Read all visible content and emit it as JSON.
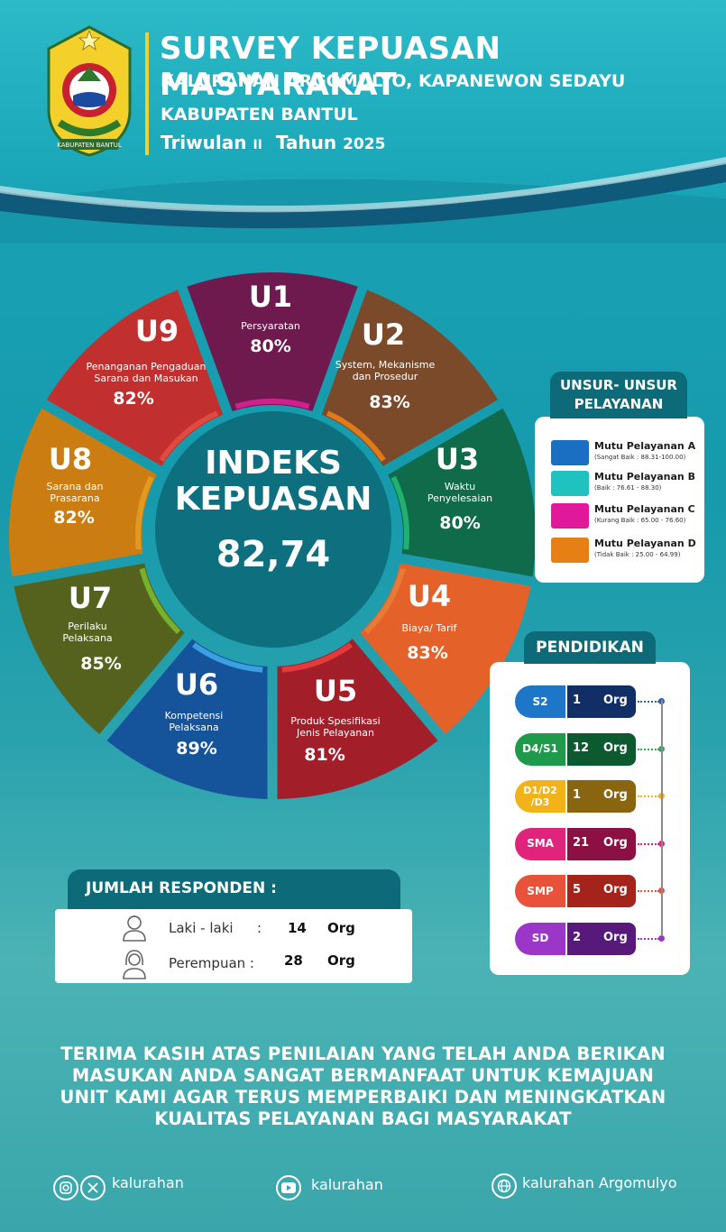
{
  "header": {
    "title": "SURVEY KEPUASAN MASYARAKAT",
    "subtitle": "KALURAHAN ARGOMULYO, KAPANEWON SEDAYU",
    "region": "KABUPATEN BANTUL",
    "quarter_label": "Triwulan",
    "quarter_value": "II",
    "year_label": "Tahun",
    "year_value": "2025",
    "logo_text": "KABUPATEN BANTUL"
  },
  "index": {
    "title_line1": "INDEKS",
    "title_line2": "KEPUASAN",
    "value": "82,74"
  },
  "segments": [
    {
      "code": "U1",
      "name_lines": [
        "Persyaratan"
      ],
      "percent": "80%",
      "color": "#6e1a4f"
    },
    {
      "code": "U2",
      "name_lines": [
        "System, Mekanisme",
        "dan Prosedur"
      ],
      "percent": "83%",
      "color": "#7a4a2a"
    },
    {
      "code": "U3",
      "name_lines": [
        "Waktu",
        "Penyelesaian"
      ],
      "percent": "80%",
      "color": "#0f6b4a"
    },
    {
      "code": "U4",
      "name_lines": [
        "Biaya/ Tarif"
      ],
      "percent": "83%",
      "color": "#e4622a"
    },
    {
      "code": "U5",
      "name_lines": [
        "Produk Spesifikasi",
        "Jenis Pelayanan"
      ],
      "percent": "81%",
      "color": "#a21f2a"
    },
    {
      "code": "U6",
      "name_lines": [
        "Kompetensi",
        "Pelaksana"
      ],
      "percent": "89%",
      "color": "#15539b"
    },
    {
      "code": "U7",
      "name_lines": [
        "Perilaku",
        "Pelaksana"
      ],
      "percent": "85%",
      "color": "#55621d"
    },
    {
      "code": "U8",
      "name_lines": [
        "Sarana dan",
        "Prasarana"
      ],
      "percent": "82%",
      "color": "#cc7d12"
    },
    {
      "code": "U9",
      "name_lines": [
        "Penanganan Pengaduan",
        "Sarana dan Masukan"
      ],
      "percent": "82%",
      "color": "#c1302e"
    }
  ],
  "legend": {
    "title_line1": "UNSUR- UNSUR",
    "title_line2": "PELAYANAN",
    "items": [
      {
        "name": "Mutu Pelayanan A",
        "range": "(Sangat Baik : 88.31-100.00)",
        "color": "#1a6fc2"
      },
      {
        "name": "Mutu Pelayanan B",
        "range": "(Baik : 76.61 - 88.30)",
        "color": "#20c2c0"
      },
      {
        "name": "Mutu Pelayanan C",
        "range": "(Kurang Baik : 65.00 - 76.60)",
        "color": "#e0189a"
      },
      {
        "name": "Mutu Pelayanan D",
        "range": "(Tidak Baik : 25.00 - 64.99)",
        "color": "#e67f14"
      }
    ]
  },
  "education": {
    "title": "PENDIDIKAN",
    "unit": "Org",
    "rows": [
      {
        "code": "S2",
        "count": "1",
        "code_color": "#1e76c8",
        "val_color": "#112f66",
        "dot_color": "#2b5fb8"
      },
      {
        "code": "D4/S1",
        "count": "12",
        "code_color": "#1f9a4a",
        "val_color": "#0e5a30",
        "dot_color": "#33a853"
      },
      {
        "code": "D1/D2/D3",
        "count": "1",
        "code_color": "#f2b21a",
        "val_color": "#8a6510",
        "dot_color": "#f2b21a"
      },
      {
        "code": "SMA",
        "count": "21",
        "code_color": "#e0247c",
        "val_color": "#8c1044",
        "dot_color": "#e0247c"
      },
      {
        "code": "SMP",
        "count": "5",
        "code_color": "#e8523a",
        "val_color": "#a4241c",
        "dot_color": "#e8523a"
      },
      {
        "code": "SD",
        "count": "2",
        "code_color": "#9c36c8",
        "val_color": "#571a7a",
        "dot_color": "#9c36c8"
      }
    ]
  },
  "respondents": {
    "title": "JUMLAH RESPONDEN :",
    "unit": "Org",
    "rows": [
      {
        "label": "Laki - laki",
        "sep": ":",
        "count": "14"
      },
      {
        "label": "Perempuan :",
        "sep": "",
        "count": "28"
      }
    ]
  },
  "footer": {
    "message_lines": [
      "TERIMA KASIH ATAS PENILAIAN YANG TELAH ANDA BERIKAN",
      "MASUKAN ANDA SANGAT BERMANFAAT UNTUK KEMAJUAN",
      "UNIT KAMI AGAR TERUS MEMPERBAIKI DAN MENINGKATKAN",
      "KUALITAS PELAYANAN BAGI MASYARAKAT"
    ],
    "social": [
      {
        "icons": [
          "instagram-icon",
          "x-twitter-icon"
        ],
        "handle": "kalurahan"
      },
      {
        "icons": [
          "youtube-icon"
        ],
        "handle": "kalurahan"
      },
      {
        "icons": [
          "web-globe-icon"
        ],
        "handle": "kalurahan Argomulyo"
      }
    ]
  }
}
